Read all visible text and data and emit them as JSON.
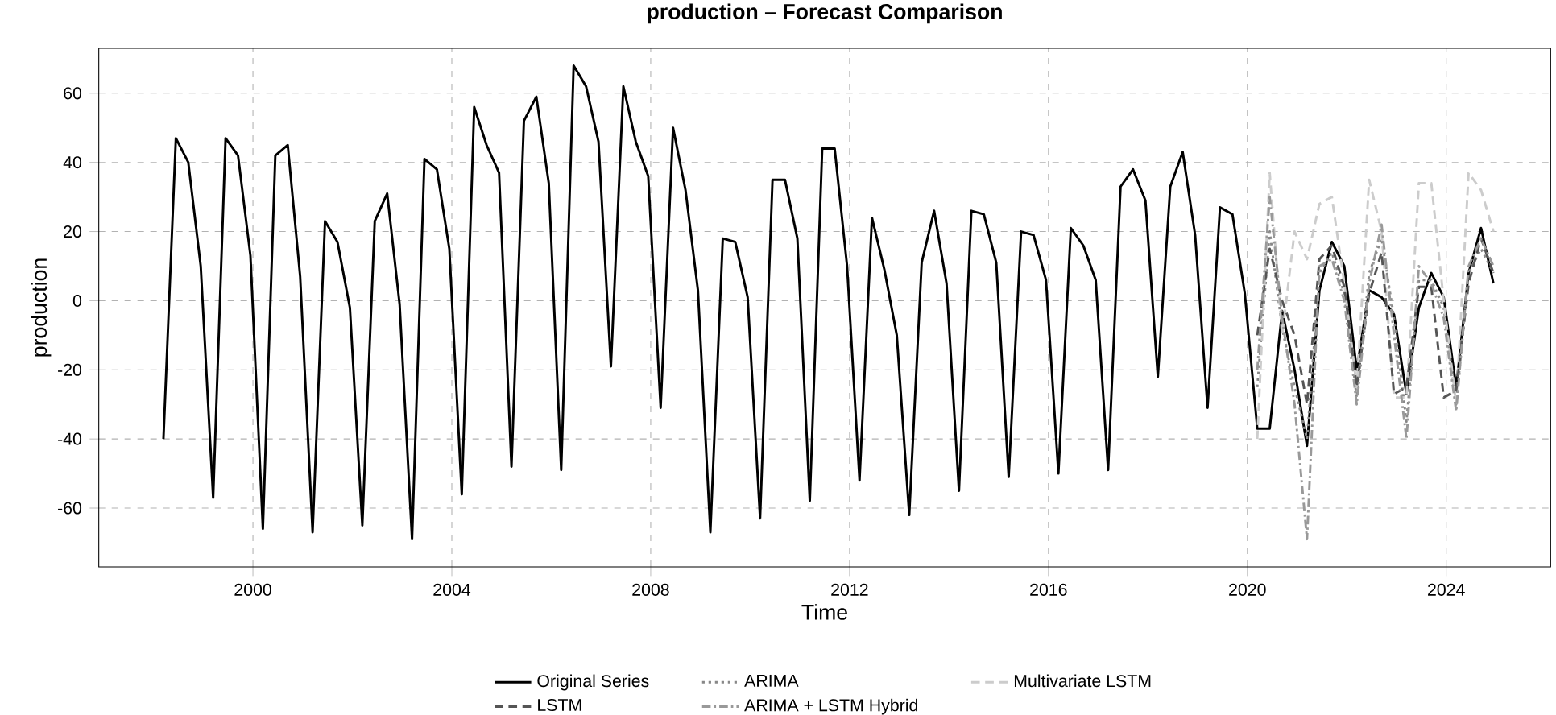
{
  "chart_data": {
    "type": "line",
    "title": "production – Forecast Comparison",
    "xlabel": "Time",
    "ylabel": "production",
    "xlim": [
      1996.9,
      2026.1
    ],
    "ylim": [
      -77,
      73
    ],
    "xticks": [
      2000,
      2004,
      2008,
      2012,
      2016,
      2020,
      2024
    ],
    "yticks": [
      -60,
      -40,
      -20,
      0,
      20,
      40,
      60
    ],
    "grid": true,
    "legend": "bottom",
    "series": [
      {
        "name": "Original Series",
        "color": "#000000",
        "line_style": "solid",
        "x": [
          1998.2,
          1998.45,
          1998.7,
          1998.95,
          1999.2,
          1999.45,
          1999.7,
          1999.95,
          2000.2,
          2000.45,
          2000.7,
          2000.95,
          2001.2,
          2001.45,
          2001.7,
          2001.95,
          2002.2,
          2002.45,
          2002.7,
          2002.95,
          2003.2,
          2003.45,
          2003.7,
          2003.95,
          2004.2,
          2004.45,
          2004.7,
          2004.95,
          2005.2,
          2005.45,
          2005.7,
          2005.95,
          2006.2,
          2006.45,
          2006.7,
          2006.95,
          2007.2,
          2007.45,
          2007.7,
          2007.95,
          2008.2,
          2008.45,
          2008.7,
          2008.95,
          2009.2,
          2009.45,
          2009.7,
          2009.95,
          2010.2,
          2010.45,
          2010.7,
          2010.95,
          2011.2,
          2011.45,
          2011.7,
          2011.95,
          2012.2,
          2012.45,
          2012.7,
          2012.95,
          2013.2,
          2013.45,
          2013.7,
          2013.95,
          2014.2,
          2014.45,
          2014.7,
          2014.95,
          2015.2,
          2015.45,
          2015.7,
          2015.95,
          2016.2,
          2016.45,
          2016.7,
          2016.95,
          2017.2,
          2017.45,
          2017.7,
          2017.95,
          2018.2,
          2018.45,
          2018.7,
          2018.95,
          2019.2,
          2019.45,
          2019.7,
          2019.95,
          2020.2,
          2020.45,
          2020.7,
          2020.95,
          2021.2,
          2021.45,
          2021.7,
          2021.95,
          2022.2,
          2022.45,
          2022.7,
          2022.95,
          2023.2,
          2023.45,
          2023.7,
          2023.95,
          2024.2,
          2024.45,
          2024.7,
          2024.95
        ],
        "values": [
          -40,
          47,
          40,
          10,
          -57,
          47,
          42,
          13,
          -66,
          42,
          45,
          7,
          -67,
          23,
          17,
          -2,
          -65,
          23,
          31,
          -1,
          -69,
          41,
          38,
          15,
          -56,
          56,
          45,
          37,
          -48,
          52,
          59,
          34,
          -49,
          68,
          62,
          46,
          -19,
          62,
          46,
          36,
          -31,
          50,
          32,
          3,
          -67,
          18,
          17,
          1,
          -63,
          35,
          35,
          18,
          -58,
          44,
          44,
          10,
          -52,
          24,
          9,
          -10,
          -62,
          11,
          26,
          5,
          -55,
          26,
          25,
          11,
          -51,
          20,
          19,
          6,
          -50,
          21,
          16,
          6,
          -49,
          33,
          38,
          29,
          -22,
          33,
          43,
          19,
          -31,
          27,
          25,
          2,
          -37,
          -37,
          -3,
          -20,
          -42,
          3,
          17,
          10,
          -20,
          3,
          1,
          -4,
          -27,
          -2,
          8,
          1,
          -25,
          8,
          21,
          5
        ]
      },
      {
        "name": "LSTM",
        "color": "#555555",
        "line_style": "dashed",
        "x": [
          2020.2,
          2020.45,
          2020.7,
          2020.95,
          2021.2,
          2021.45,
          2021.7,
          2021.95,
          2022.2,
          2022.45,
          2022.7,
          2022.95,
          2023.2,
          2023.45,
          2023.7,
          2023.95,
          2024.2,
          2024.45,
          2024.7,
          2024.95
        ],
        "values": [
          -10,
          15,
          0,
          -10,
          -30,
          12,
          16,
          4,
          -25,
          2,
          14,
          -27,
          -25,
          4,
          4,
          -28,
          -26,
          5,
          18,
          8
        ]
      },
      {
        "name": "ARIMA",
        "color": "#888888",
        "line_style": "dotted",
        "x": [
          2020.2,
          2020.45,
          2020.7,
          2020.95,
          2021.2,
          2021.45,
          2021.7,
          2021.95,
          2022.2,
          2022.45,
          2022.7,
          2022.95,
          2023.2,
          2023.45,
          2023.7,
          2023.95,
          2024.2,
          2024.45,
          2024.7,
          2024.95
        ],
        "values": [
          -25,
          20,
          -8,
          -25,
          -40,
          8,
          14,
          2,
          -28,
          8,
          18,
          -5,
          -35,
          6,
          6,
          -2,
          -30,
          8,
          15,
          8
        ]
      },
      {
        "name": "ARIMA + LSTM Hybrid",
        "color": "#999999",
        "line_style": "dashdot",
        "x": [
          2020.2,
          2020.45,
          2020.7,
          2020.95,
          2021.2,
          2021.45,
          2021.7,
          2021.95,
          2022.2,
          2022.45,
          2022.7,
          2022.95,
          2023.2,
          2023.45,
          2023.7,
          2023.95,
          2024.2,
          2024.45,
          2024.7,
          2024.95
        ],
        "values": [
          -20,
          30,
          -5,
          -30,
          -69,
          10,
          12,
          0,
          -30,
          5,
          22,
          -10,
          -40,
          10,
          5,
          -5,
          -32,
          10,
          18,
          10
        ]
      },
      {
        "name": "Multivariate LSTM",
        "color": "#cccccc",
        "line_style": "dashed",
        "x": [
          2020.2,
          2020.45,
          2020.7,
          2020.95,
          2021.2,
          2021.45,
          2021.7,
          2021.95,
          2022.2,
          2022.45,
          2022.7,
          2022.95,
          2023.2,
          2023.45,
          2023.7,
          2023.95,
          2024.2,
          2024.45,
          2024.7,
          2024.95
        ],
        "values": [
          -40,
          37,
          -10,
          20,
          12,
          28,
          30,
          5,
          -25,
          35,
          20,
          -28,
          -28,
          34,
          34,
          0,
          -30,
          37,
          32,
          20
        ]
      }
    ]
  }
}
